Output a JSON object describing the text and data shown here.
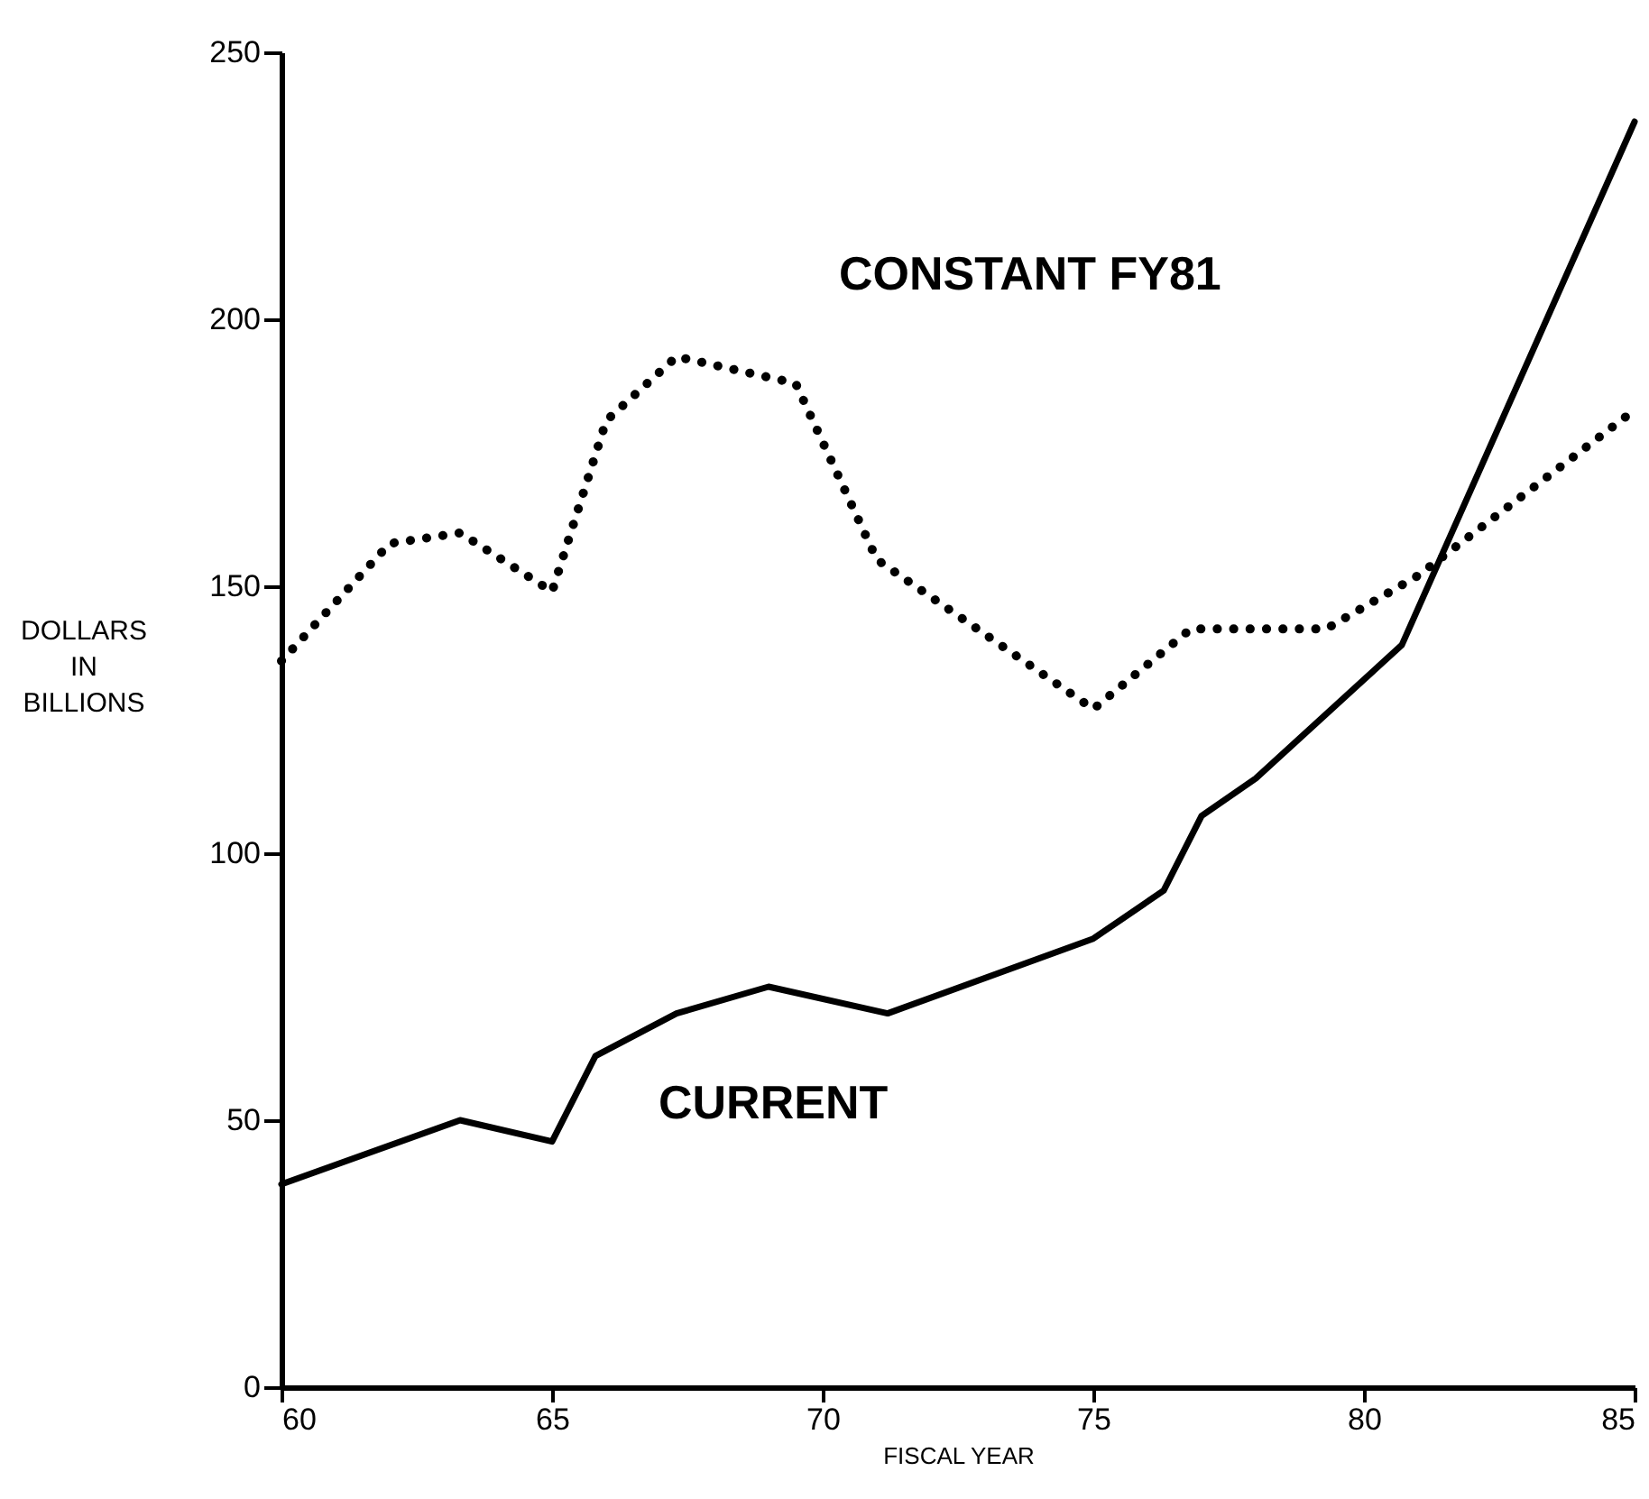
{
  "chart_data": {
    "type": "line",
    "xlabel": "FISCAL YEAR",
    "ylabel": "DOLLARS IN BILLIONS",
    "xlim": [
      60,
      85
    ],
    "xticks": [
      60,
      65,
      70,
      75,
      80,
      85
    ],
    "ylim": [
      0,
      250
    ],
    "yticks": [
      0,
      50,
      100,
      150,
      200,
      250
    ],
    "grid": false,
    "legend": false,
    "marker": "none",
    "series": [
      {
        "name": "CONSTANT FY81",
        "color": "#000000",
        "line_style": "dotted",
        "x": [
          60,
          62,
          63.3,
          65,
          66,
          67.3,
          69.5,
          71,
          75,
          76.8,
          79.3,
          81,
          85
        ],
        "values": [
          136,
          158,
          160,
          149,
          181,
          193,
          188,
          155,
          127,
          142,
          142,
          152,
          183
        ]
      },
      {
        "name": "CURRENT",
        "color": "#000000",
        "line_style": "solid",
        "x": [
          60,
          63.3,
          65,
          65.8,
          67.3,
          69,
          71.2,
          75,
          76.3,
          77,
          78,
          80.7,
          85
        ],
        "values": [
          38,
          50,
          46,
          62,
          70,
          75,
          70,
          84,
          93,
          107,
          114,
          139,
          237
        ]
      }
    ]
  }
}
